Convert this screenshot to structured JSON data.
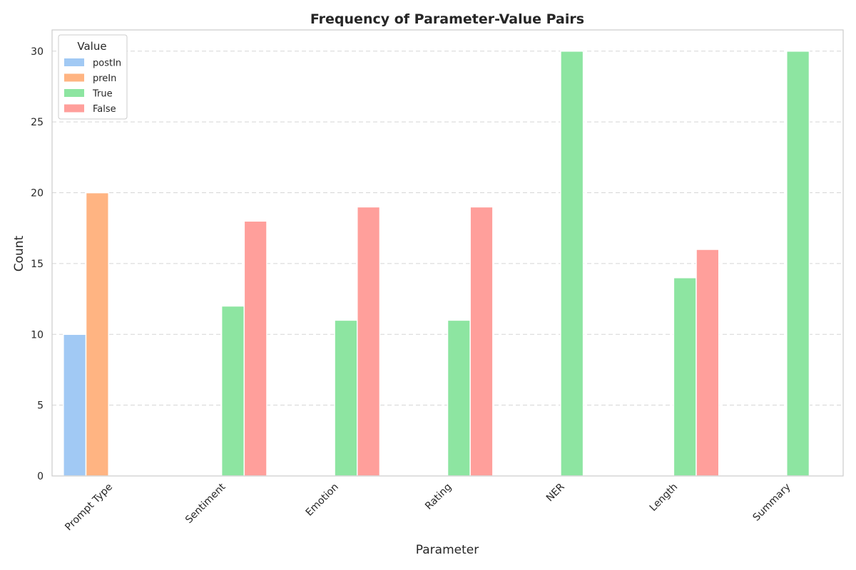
{
  "chart_data": {
    "type": "bar",
    "title": "Frequency of Parameter-Value Pairs",
    "xlabel": "Parameter",
    "ylabel": "Count",
    "ylim": [
      0,
      31.5
    ],
    "yticks": [
      0,
      5,
      10,
      15,
      20,
      25,
      30
    ],
    "grid": "y-dashed",
    "categories": [
      "Prompt Type",
      "Sentiment",
      "Emotion",
      "Rating",
      "NER",
      "Length",
      "Summary"
    ],
    "legend": {
      "title": "Value",
      "placement": "top-left"
    },
    "series": [
      {
        "name": "postIn",
        "color": "#a1c9f4",
        "values": [
          10,
          0,
          0,
          0,
          0,
          0,
          0
        ]
      },
      {
        "name": "preIn",
        "color": "#ffb482",
        "values": [
          20,
          0,
          0,
          0,
          0,
          0,
          0
        ]
      },
      {
        "name": "True",
        "color": "#8de5a1",
        "values": [
          0,
          12,
          11,
          11,
          30,
          14,
          30
        ]
      },
      {
        "name": "False",
        "color": "#ff9f9b",
        "values": [
          0,
          18,
          19,
          19,
          0,
          16,
          0
        ]
      }
    ]
  }
}
